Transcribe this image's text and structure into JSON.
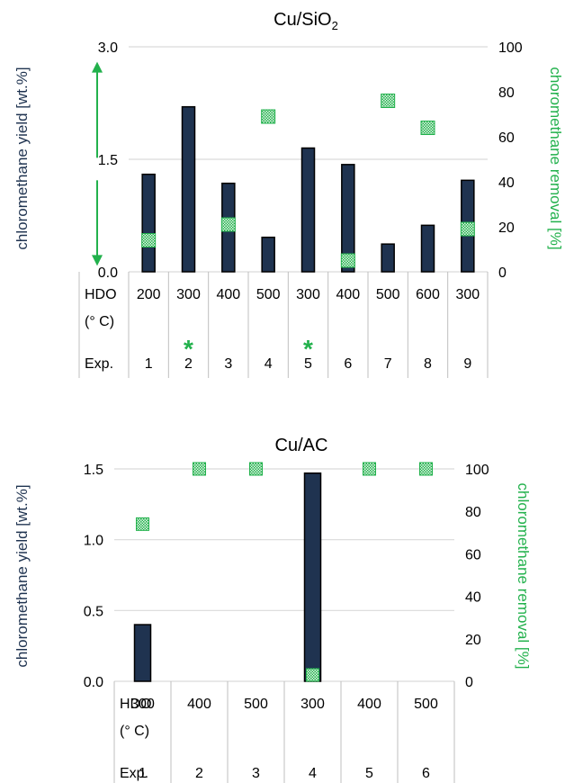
{
  "chart_data": [
    {
      "type": "bar",
      "title_parts": [
        "Cu/SiO",
        "2"
      ],
      "ylabel_left": "chloromethane yield [wt.%]",
      "ylabel_right": "choromethane removal [%]",
      "ylim_left": [
        0,
        3
      ],
      "yticks_left": [
        "0.0",
        "1.5",
        "3.0"
      ],
      "ylim_right": [
        0,
        100
      ],
      "yticks_right": [
        "0",
        "20",
        "40",
        "60",
        "80",
        "100"
      ],
      "row_labels": {
        "hdo": "HDO",
        "unit": "(° C)",
        "exp": "Exp."
      },
      "hdo_temps": [
        "200",
        "300",
        "400",
        "500",
        "300",
        "400",
        "500",
        "600",
        "300"
      ],
      "experiments": [
        "1",
        "2",
        "3",
        "4",
        "5",
        "6",
        "7",
        "8",
        "9"
      ],
      "asterisk_label": "*",
      "asterisk_experiments": [
        2,
        5
      ],
      "series": [
        {
          "values": [
            1.3,
            2.2,
            1.18,
            0.46,
            1.65,
            1.43,
            0.37,
            0.62,
            1.22
          ]
        },
        {
          "values": [
            14,
            null,
            21,
            69,
            null,
            5,
            76,
            64,
            19
          ]
        }
      ],
      "arrow": {
        "top": 2.8,
        "bottom": 0.08
      },
      "colors": {
        "bar": "#1f3350",
        "marker": "#22b14c"
      }
    },
    {
      "type": "bar",
      "title": "Cu/AC",
      "ylabel_left": "chloromethane  yield [wt.%]",
      "ylabel_right": "chloromethane removal [%]",
      "ylim_left": [
        0,
        1.5
      ],
      "yticks_left": [
        "0.0",
        "0.5",
        "1.0",
        "1.5"
      ],
      "ylim_right": [
        0,
        100
      ],
      "yticks_right": [
        "0",
        "20",
        "40",
        "60",
        "80",
        "100"
      ],
      "row_labels": {
        "hdo": "HDO",
        "unit": "(° C)",
        "exp": "Exp."
      },
      "hdo_temps": [
        "300",
        "400",
        "500",
        "300",
        "400",
        "500"
      ],
      "experiments": [
        "1",
        "2",
        "3",
        "4",
        "5",
        "6"
      ],
      "series": [
        {
          "values": [
            0.4,
            0,
            0,
            1.47,
            0,
            0
          ]
        },
        {
          "values": [
            74,
            100,
            100,
            3,
            100,
            100
          ]
        }
      ],
      "colors": {
        "bar": "#1f3350",
        "marker": "#22b14c"
      }
    }
  ]
}
